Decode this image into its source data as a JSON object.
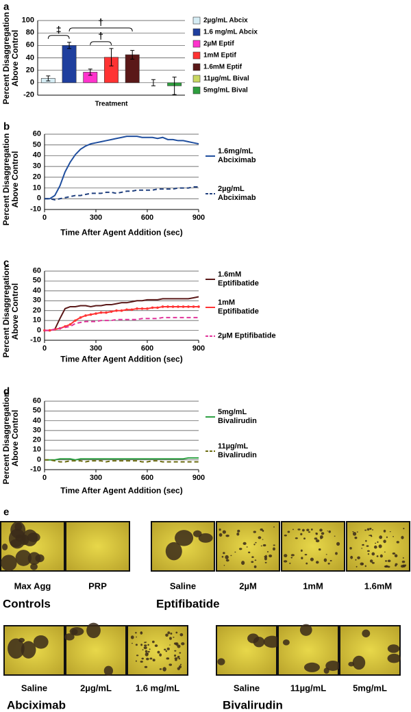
{
  "chart_data": [
    {
      "type": "bar",
      "panel": "a",
      "ylabel": "Percent Disaggregation Above Control",
      "xlabel": "Treatment",
      "ylim": [
        -20,
        100
      ],
      "yticks": [
        -20,
        0,
        20,
        40,
        60,
        80,
        100
      ],
      "grid": true,
      "legend": "right",
      "annotations": [
        "‡",
        "†",
        "†"
      ],
      "series": [
        {
          "name": "2µg/mL Abcix",
          "color": "#d6edf5",
          "values": [
            7
          ],
          "errors": [
            4
          ]
        },
        {
          "name": "1.6 mg/mL Abcix",
          "color": "#1f3f9e",
          "values": [
            60
          ],
          "errors": [
            5
          ]
        },
        {
          "name": "2µM Eptif",
          "color": "#ff33cc",
          "values": [
            17
          ],
          "errors": [
            5
          ]
        },
        {
          "name": "1mM Eptif",
          "color": "#ff3333",
          "values": [
            41
          ],
          "errors": [
            14
          ]
        },
        {
          "name": "1.6mM Eptif",
          "color": "#5a1818",
          "values": [
            45
          ],
          "errors": [
            7
          ]
        },
        {
          "name": "11µg/mL Bival",
          "color": "#c9d862",
          "values": [
            0
          ],
          "errors": [
            5
          ]
        },
        {
          "name": "5mg/mL Bival",
          "color": "#2e9e3e",
          "values": [
            -5
          ],
          "errors": [
            14
          ]
        }
      ]
    },
    {
      "type": "line",
      "panel": "b",
      "ylabel": "Percent Disaggregation Above Control",
      "xlabel": "Time After Agent Addition (sec)",
      "xlim": [
        0,
        900
      ],
      "xticks": [
        0,
        300,
        600,
        900
      ],
      "ylim": [
        -10,
        60
      ],
      "yticks": [
        -10,
        0,
        10,
        20,
        30,
        40,
        50,
        60
      ],
      "grid": true,
      "legend": "right",
      "x": [
        0,
        30,
        60,
        90,
        120,
        150,
        180,
        210,
        240,
        270,
        300,
        330,
        360,
        390,
        420,
        450,
        480,
        510,
        540,
        570,
        600,
        630,
        660,
        690,
        720,
        750,
        780,
        810,
        840,
        870,
        900
      ],
      "series": [
        {
          "name": "1.6mg/mL Abciximab",
          "color": "#1f4e9e",
          "style": "solid",
          "values": [
            0,
            0,
            3,
            12,
            25,
            34,
            41,
            46,
            49,
            51,
            52,
            53,
            54,
            55,
            56,
            57,
            58,
            58,
            58,
            57,
            57,
            57,
            56,
            57,
            55,
            55,
            54,
            54,
            53,
            52,
            51
          ]
        },
        {
          "name": "2µg/mL Abciximab",
          "color": "#1f3f7e",
          "style": "dashed",
          "values": [
            0,
            0,
            -1,
            0,
            1,
            2,
            3,
            3,
            4,
            5,
            5,
            5,
            6,
            6,
            5,
            6,
            7,
            7,
            8,
            8,
            8,
            8,
            9,
            9,
            9,
            9,
            10,
            10,
            10,
            11,
            11
          ]
        }
      ]
    },
    {
      "type": "line",
      "panel": "c",
      "ylabel": "Percent Disaggregation Above Control",
      "xlabel": "Time After Agent Addition (sec)",
      "xlim": [
        0,
        900
      ],
      "xticks": [
        0,
        300,
        600,
        900
      ],
      "ylim": [
        -10,
        60
      ],
      "yticks": [
        -10,
        0,
        10,
        20,
        30,
        40,
        50,
        60
      ],
      "grid": true,
      "legend": "right",
      "x": [
        0,
        30,
        60,
        90,
        120,
        150,
        180,
        210,
        240,
        270,
        300,
        330,
        360,
        390,
        420,
        450,
        480,
        510,
        540,
        570,
        600,
        630,
        660,
        690,
        720,
        750,
        780,
        810,
        840,
        870,
        900
      ],
      "series": [
        {
          "name": "1.6mM Eptifibatide",
          "color": "#5a1818",
          "style": "solid",
          "values": [
            0,
            0,
            1,
            12,
            22,
            24,
            24,
            25,
            25,
            24,
            25,
            25,
            26,
            26,
            27,
            28,
            28,
            29,
            30,
            30,
            31,
            31,
            31,
            32,
            32,
            32,
            32,
            32,
            32,
            33,
            34
          ]
        },
        {
          "name": "1mM Eptifibatide",
          "color": "#ff3333",
          "style": "solid",
          "marker": true,
          "values": [
            0,
            0,
            1,
            2,
            4,
            6,
            10,
            13,
            15,
            16,
            17,
            18,
            18,
            19,
            20,
            20,
            21,
            21,
            22,
            22,
            22,
            23,
            23,
            24,
            24,
            24,
            24,
            24,
            24,
            24,
            24
          ]
        },
        {
          "name": "2µM Eptifibatide",
          "color": "#e0339a",
          "style": "dashed",
          "values": [
            0,
            0,
            1,
            2,
            3,
            4,
            7,
            8,
            9,
            9,
            9,
            10,
            10,
            10,
            11,
            11,
            11,
            11,
            11,
            12,
            12,
            12,
            12,
            13,
            13,
            13,
            13,
            13,
            13,
            13,
            13
          ]
        }
      ]
    },
    {
      "type": "line",
      "panel": "d",
      "ylabel": "Percent Disaggregation Above Control",
      "xlabel": "Time After Agent Addition (sec)",
      "xlim": [
        0,
        900
      ],
      "xticks": [
        0,
        300,
        600,
        900
      ],
      "ylim": [
        -10,
        60
      ],
      "yticks": [
        -10,
        0,
        10,
        20,
        30,
        40,
        50,
        60
      ],
      "grid": true,
      "legend": "right",
      "x": [
        0,
        30,
        60,
        90,
        120,
        150,
        180,
        210,
        240,
        270,
        300,
        330,
        360,
        390,
        420,
        450,
        480,
        510,
        540,
        570,
        600,
        630,
        660,
        690,
        720,
        750,
        780,
        810,
        840,
        870,
        900
      ],
      "series": [
        {
          "name": "5mg/mL Bivalirudin",
          "color": "#2ea043",
          "style": "solid",
          "values": [
            0,
            0,
            0,
            1,
            1,
            1,
            0,
            1,
            1,
            1,
            1,
            1,
            1,
            1,
            1,
            1,
            1,
            1,
            1,
            1,
            1,
            1,
            1,
            1,
            1,
            1,
            1,
            1,
            2,
            2,
            2
          ]
        },
        {
          "name": "11µg/mL Bivalirudin",
          "color": "#6b6b10",
          "style": "dashed",
          "values": [
            0,
            0,
            -1,
            -2,
            -2,
            -1,
            -1,
            -1,
            -2,
            -1,
            -1,
            -1,
            -2,
            -1,
            -1,
            -1,
            -1,
            -1,
            -1,
            -2,
            -2,
            -1,
            -1,
            -2,
            -2,
            -2,
            -2,
            -2,
            -2,
            -2,
            -2
          ]
        }
      ]
    }
  ],
  "image_panel": {
    "label": "e",
    "groups": [
      {
        "title": "Controls",
        "images": [
          "Max Agg",
          "PRP"
        ]
      },
      {
        "title": "Eptifibatide",
        "images": [
          "Saline",
          "2µM",
          "1mM",
          "1.6mM"
        ]
      },
      {
        "title": "Abciximab",
        "images": [
          "Saline",
          "2µg/mL",
          "1.6 mg/mL"
        ]
      },
      {
        "title": "Bivalirudin",
        "images": [
          "Saline",
          "11µg/mL",
          "5mg/mL"
        ]
      }
    ]
  }
}
